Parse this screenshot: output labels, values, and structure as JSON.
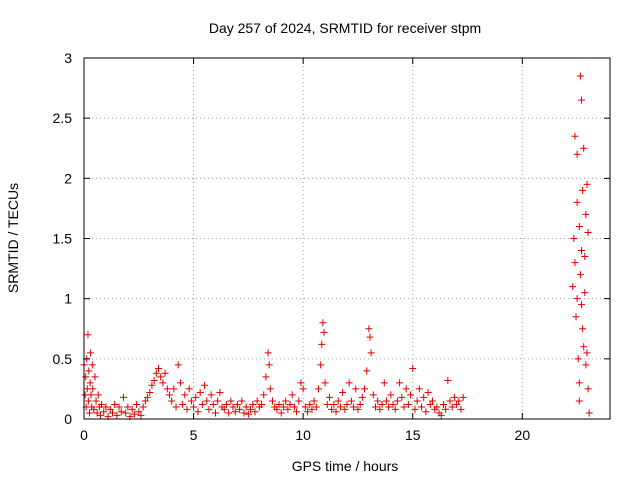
{
  "chart_data": {
    "type": "scatter",
    "title": "Day 257 of 2024, SRMTID for receiver stpm",
    "xlabel": "GPS time / hours",
    "ylabel": "SRMTID / TECUs",
    "xlim": [
      0,
      24
    ],
    "ylim": [
      0,
      3
    ],
    "xticks": [
      0,
      5,
      10,
      15,
      20
    ],
    "yticks": [
      0,
      0.5,
      1,
      1.5,
      2,
      2.5,
      3
    ],
    "ytick_labels": [
      "0",
      "0.5",
      "1",
      "1.5",
      "2",
      "2.5",
      "3"
    ],
    "grid": true,
    "marker": "+",
    "color": "#e00000",
    "series": [
      {
        "points": [
          [
            0.0,
            0.45
          ],
          [
            0.05,
            0.2
          ],
          [
            0.08,
            0.35
          ],
          [
            0.1,
            0.1
          ],
          [
            0.12,
            0.5
          ],
          [
            0.15,
            0.25
          ],
          [
            0.18,
            0.7
          ],
          [
            0.2,
            0.15
          ],
          [
            0.22,
            0.4
          ],
          [
            0.25,
            0.05
          ],
          [
            0.28,
            0.3
          ],
          [
            0.3,
            0.55
          ],
          [
            0.32,
            0.2
          ],
          [
            0.35,
            0.1
          ],
          [
            0.38,
            0.45
          ],
          [
            0.4,
            0.25
          ],
          [
            0.45,
            0.08
          ],
          [
            0.5,
            0.35
          ],
          [
            0.55,
            0.15
          ],
          [
            0.6,
            0.05
          ],
          [
            0.65,
            0.2
          ],
          [
            0.7,
            0.1
          ],
          [
            0.75,
            0.03
          ],
          [
            0.8,
            0.12
          ],
          [
            0.9,
            0.06
          ],
          [
            1.0,
            0.1
          ],
          [
            1.1,
            0.02
          ],
          [
            1.2,
            0.08
          ],
          [
            1.3,
            0.05
          ],
          [
            1.4,
            0.12
          ],
          [
            1.5,
            0.03
          ],
          [
            1.6,
            0.1
          ],
          [
            1.7,
            0.06
          ],
          [
            1.8,
            0.18
          ],
          [
            1.9,
            0.05
          ],
          [
            2.0,
            0.1
          ],
          [
            2.1,
            0.02
          ],
          [
            2.2,
            0.08
          ],
          [
            2.3,
            0.04
          ],
          [
            2.4,
            0.12
          ],
          [
            2.5,
            0.06
          ],
          [
            2.6,
            0.03
          ],
          [
            2.7,
            0.1
          ],
          [
            2.8,
            0.15
          ],
          [
            2.9,
            0.18
          ],
          [
            3.0,
            0.22
          ],
          [
            3.1,
            0.28
          ],
          [
            3.2,
            0.32
          ],
          [
            3.3,
            0.38
          ],
          [
            3.4,
            0.42
          ],
          [
            3.5,
            0.35
          ],
          [
            3.6,
            0.3
          ],
          [
            3.7,
            0.38
          ],
          [
            3.8,
            0.25
          ],
          [
            3.9,
            0.2
          ],
          [
            4.0,
            0.15
          ],
          [
            4.1,
            0.25
          ],
          [
            4.2,
            0.1
          ],
          [
            4.3,
            0.45
          ],
          [
            4.4,
            0.3
          ],
          [
            4.5,
            0.12
          ],
          [
            4.6,
            0.2
          ],
          [
            4.7,
            0.08
          ],
          [
            4.8,
            0.25
          ],
          [
            4.9,
            0.15
          ],
          [
            5.0,
            0.1
          ],
          [
            5.1,
            0.18
          ],
          [
            5.2,
            0.06
          ],
          [
            5.3,
            0.22
          ],
          [
            5.4,
            0.12
          ],
          [
            5.5,
            0.28
          ],
          [
            5.6,
            0.15
          ],
          [
            5.7,
            0.08
          ],
          [
            5.8,
            0.2
          ],
          [
            5.9,
            0.12
          ],
          [
            6.0,
            0.05
          ],
          [
            6.1,
            0.15
          ],
          [
            6.2,
            0.22
          ],
          [
            6.3,
            0.1
          ],
          [
            6.4,
            0.08
          ],
          [
            6.5,
            0.12
          ],
          [
            6.6,
            0.05
          ],
          [
            6.7,
            0.15
          ],
          [
            6.8,
            0.1
          ],
          [
            6.9,
            0.06
          ],
          [
            7.0,
            0.12
          ],
          [
            7.1,
            0.08
          ],
          [
            7.2,
            0.15
          ],
          [
            7.3,
            0.05
          ],
          [
            7.4,
            0.1
          ],
          [
            7.5,
            0.04
          ],
          [
            7.6,
            0.08
          ],
          [
            7.7,
            0.12
          ],
          [
            7.8,
            0.06
          ],
          [
            7.9,
            0.15
          ],
          [
            8.0,
            0.1
          ],
          [
            8.1,
            0.12
          ],
          [
            8.2,
            0.2
          ],
          [
            8.3,
            0.35
          ],
          [
            8.4,
            0.55
          ],
          [
            8.45,
            0.45
          ],
          [
            8.5,
            0.25
          ],
          [
            8.6,
            0.15
          ],
          [
            8.7,
            0.1
          ],
          [
            8.8,
            0.08
          ],
          [
            8.9,
            0.12
          ],
          [
            9.0,
            0.05
          ],
          [
            9.1,
            0.1
          ],
          [
            9.2,
            0.15
          ],
          [
            9.3,
            0.08
          ],
          [
            9.4,
            0.12
          ],
          [
            9.5,
            0.2
          ],
          [
            9.6,
            0.1
          ],
          [
            9.7,
            0.06
          ],
          [
            9.8,
            0.15
          ],
          [
            9.9,
            0.3
          ],
          [
            10.0,
            0.25
          ],
          [
            10.1,
            0.1
          ],
          [
            10.2,
            0.06
          ],
          [
            10.3,
            0.12
          ],
          [
            10.4,
            0.08
          ],
          [
            10.5,
            0.15
          ],
          [
            10.6,
            0.1
          ],
          [
            10.7,
            0.25
          ],
          [
            10.8,
            0.45
          ],
          [
            10.85,
            0.62
          ],
          [
            10.9,
            0.8
          ],
          [
            10.95,
            0.72
          ],
          [
            11.0,
            0.3
          ],
          [
            11.1,
            0.12
          ],
          [
            11.2,
            0.18
          ],
          [
            11.3,
            0.08
          ],
          [
            11.4,
            0.12
          ],
          [
            11.5,
            0.06
          ],
          [
            11.6,
            0.15
          ],
          [
            11.7,
            0.1
          ],
          [
            11.8,
            0.22
          ],
          [
            11.9,
            0.08
          ],
          [
            12.0,
            0.12
          ],
          [
            12.1,
            0.3
          ],
          [
            12.2,
            0.15
          ],
          [
            12.3,
            0.1
          ],
          [
            12.4,
            0.25
          ],
          [
            12.5,
            0.08
          ],
          [
            12.6,
            0.12
          ],
          [
            12.7,
            0.18
          ],
          [
            12.8,
            0.25
          ],
          [
            12.9,
            0.4
          ],
          [
            13.0,
            0.75
          ],
          [
            13.05,
            0.68
          ],
          [
            13.1,
            0.55
          ],
          [
            13.2,
            0.2
          ],
          [
            13.3,
            0.1
          ],
          [
            13.4,
            0.15
          ],
          [
            13.5,
            0.08
          ],
          [
            13.6,
            0.12
          ],
          [
            13.7,
            0.3
          ],
          [
            13.8,
            0.15
          ],
          [
            13.9,
            0.1
          ],
          [
            14.0,
            0.2
          ],
          [
            14.1,
            0.12
          ],
          [
            14.2,
            0.08
          ],
          [
            14.3,
            0.15
          ],
          [
            14.4,
            0.3
          ],
          [
            14.5,
            0.18
          ],
          [
            14.6,
            0.1
          ],
          [
            14.7,
            0.25
          ],
          [
            14.8,
            0.12
          ],
          [
            14.9,
            0.2
          ],
          [
            15.0,
            0.42
          ],
          [
            15.1,
            0.08
          ],
          [
            15.2,
            0.15
          ],
          [
            15.3,
            0.25
          ],
          [
            15.4,
            0.1
          ],
          [
            15.5,
            0.18
          ],
          [
            15.6,
            0.06
          ],
          [
            15.7,
            0.22
          ],
          [
            15.8,
            0.12
          ],
          [
            15.9,
            0.15
          ],
          [
            16.0,
            0.08
          ],
          [
            16.1,
            0.1
          ],
          [
            16.2,
            0.05
          ],
          [
            16.3,
            0.03
          ],
          [
            16.4,
            0.12
          ],
          [
            16.5,
            0.08
          ],
          [
            16.6,
            0.32
          ],
          [
            16.7,
            0.15
          ],
          [
            16.8,
            0.1
          ],
          [
            16.9,
            0.18
          ],
          [
            17.0,
            0.12
          ],
          [
            17.1,
            0.15
          ],
          [
            17.2,
            0.08
          ],
          [
            17.3,
            0.18
          ],
          [
            22.3,
            1.1
          ],
          [
            22.35,
            1.5
          ],
          [
            22.4,
            2.35
          ],
          [
            22.45,
            0.85
          ],
          [
            22.5,
            1.8
          ],
          [
            22.5,
            2.2
          ],
          [
            22.55,
            0.5
          ],
          [
            22.6,
            1.6
          ],
          [
            22.6,
            0.3
          ],
          [
            22.65,
            2.85
          ],
          [
            22.65,
            1.2
          ],
          [
            22.7,
            2.65
          ],
          [
            22.7,
            1.4
          ],
          [
            22.75,
            0.75
          ],
          [
            22.75,
            1.9
          ],
          [
            22.8,
            2.25
          ],
          [
            22.8,
            0.6
          ],
          [
            22.85,
            1.35
          ],
          [
            22.9,
            1.7
          ],
          [
            22.9,
            0.45
          ],
          [
            22.95,
            1.95
          ],
          [
            23.0,
            1.55
          ],
          [
            23.0,
            0.25
          ],
          [
            23.05,
            0.05
          ],
          [
            22.4,
            1.3
          ],
          [
            22.5,
            1.0
          ],
          [
            22.6,
            0.15
          ],
          [
            22.7,
            0.95
          ],
          [
            22.85,
            1.05
          ],
          [
            22.95,
            0.55
          ]
        ]
      }
    ]
  }
}
